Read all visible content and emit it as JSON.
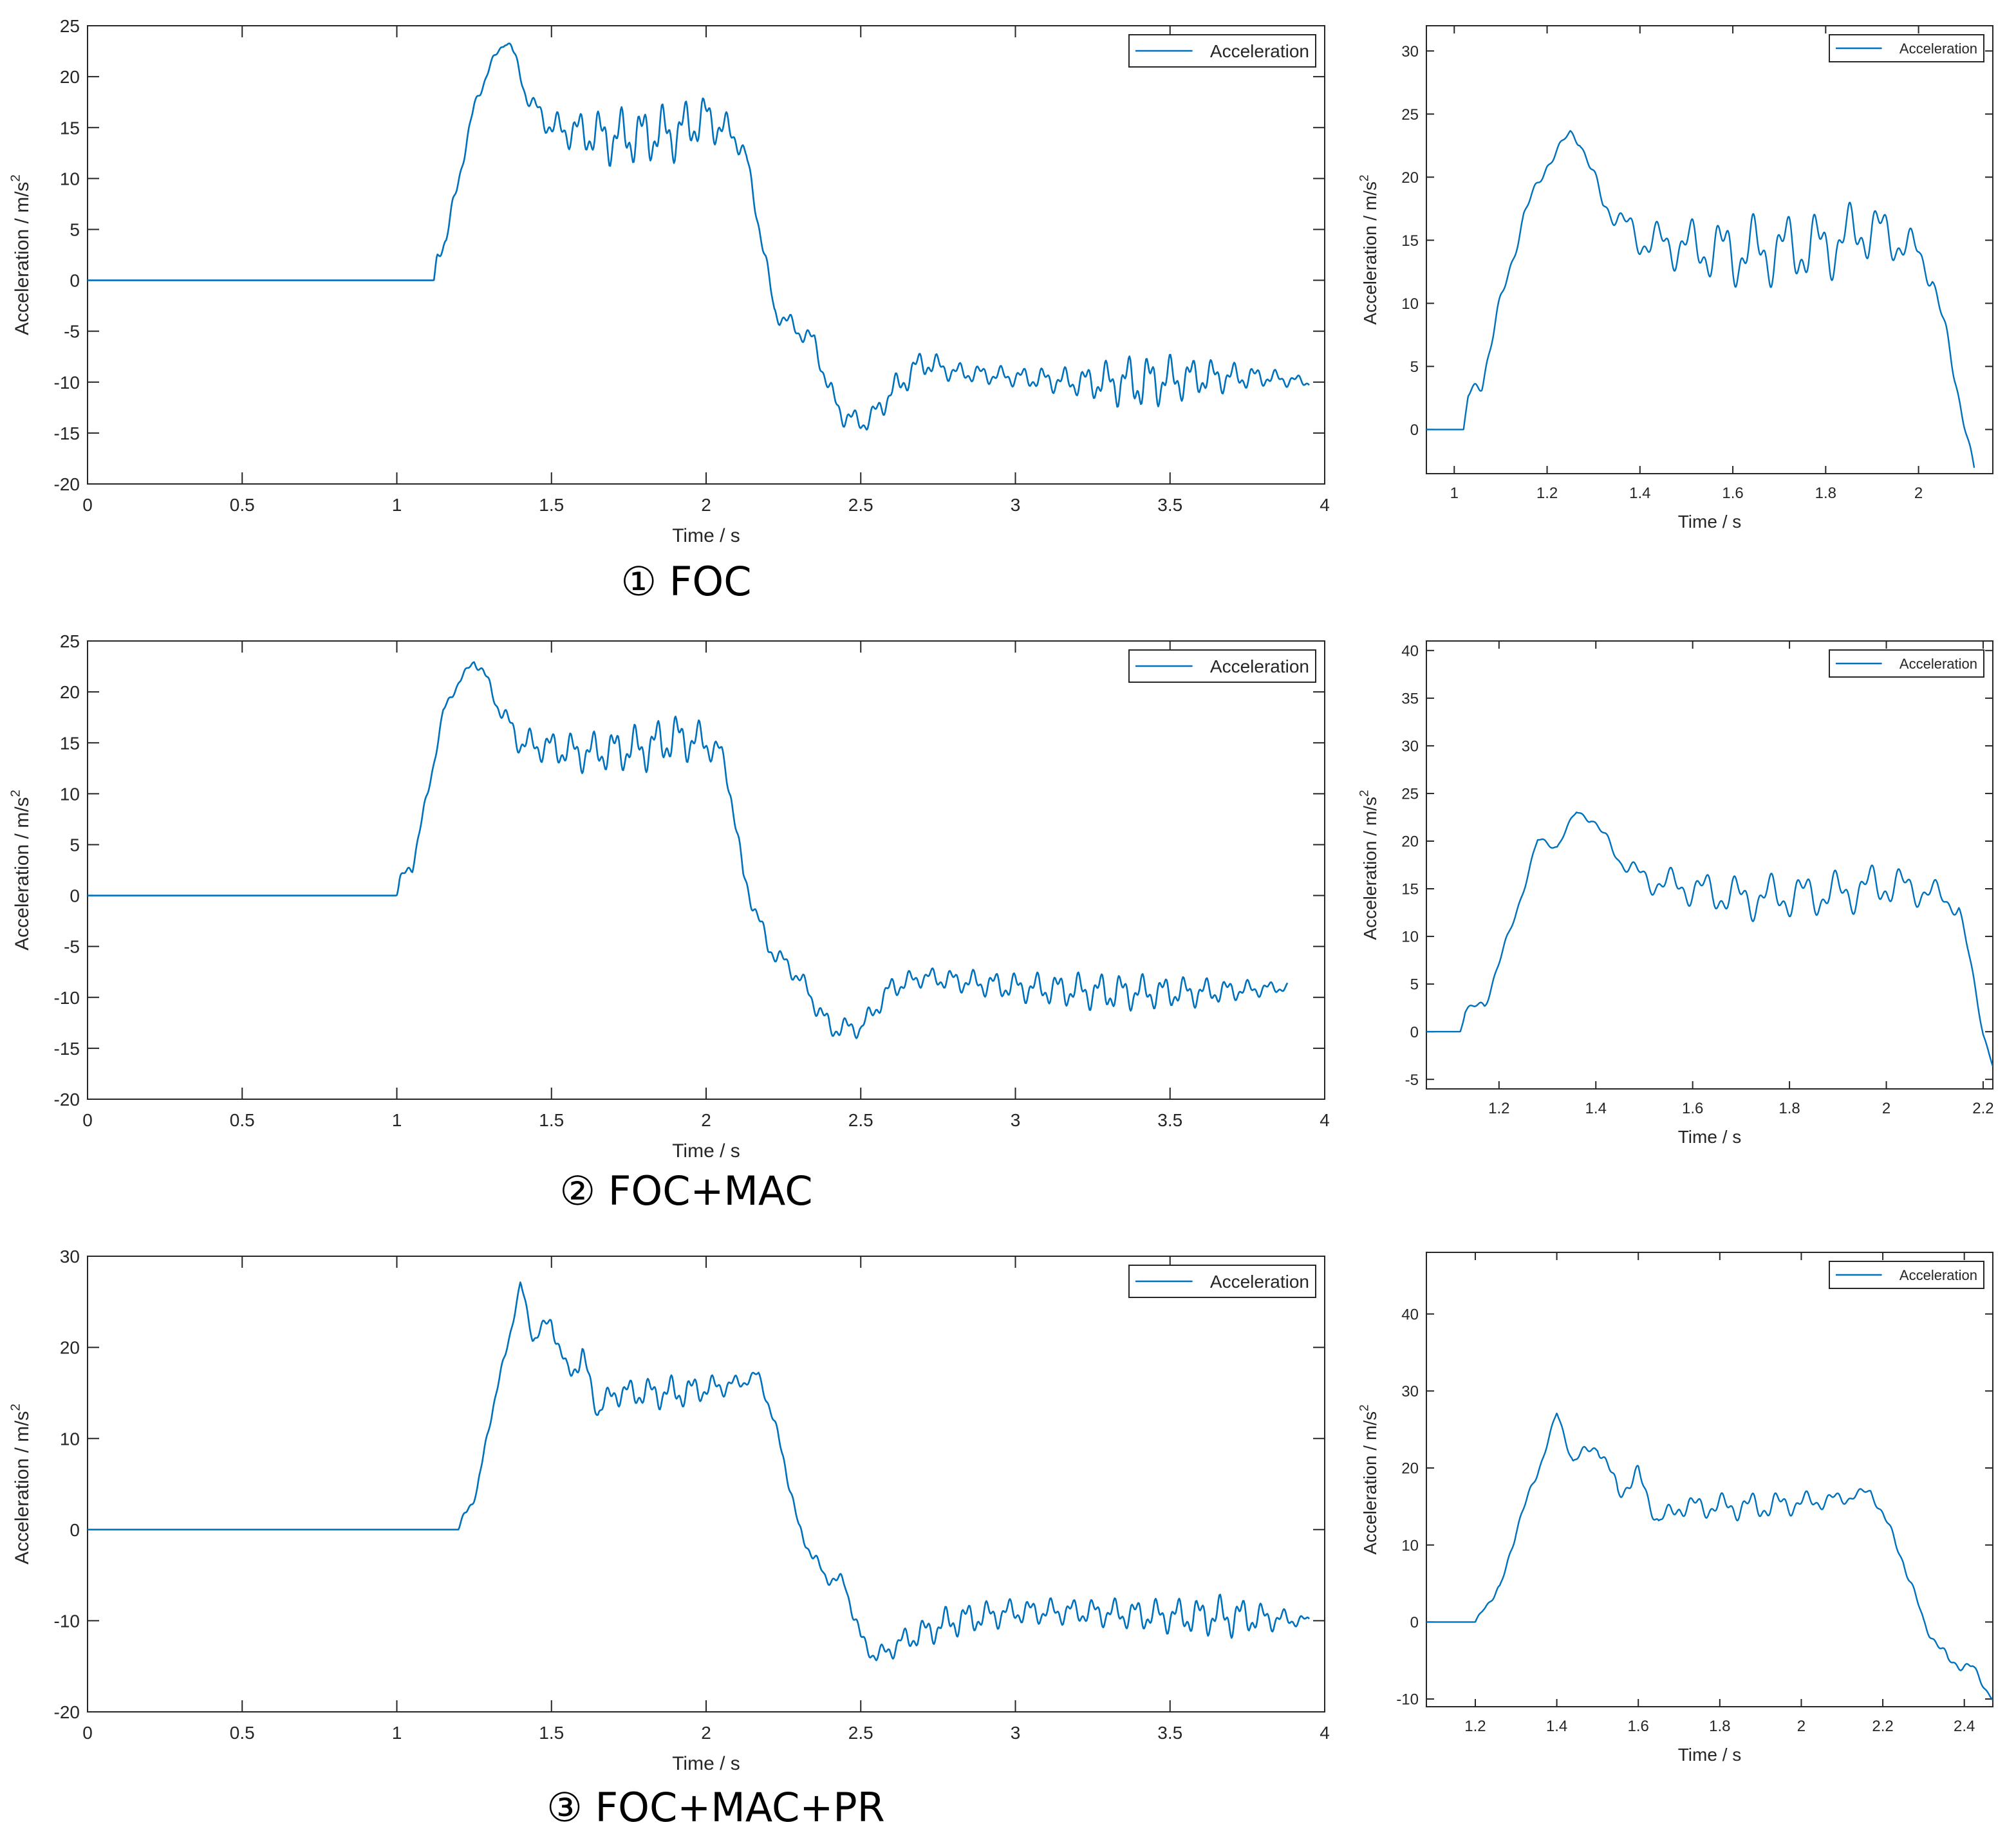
{
  "colors": {
    "line": "#0072BD",
    "axis": "#262626",
    "background": "#ffffff"
  },
  "captions": [
    "① FOC",
    "② FOC+MAC",
    "③ FOC+MAC+PR"
  ],
  "chart_data": [
    {
      "id": "foc-main",
      "type": "line",
      "title": "",
      "xlabel": "Time / s",
      "ylabel": "Acceleration / m/s",
      "ylabel_sup": "2",
      "xlim": [
        0,
        4
      ],
      "ylim": [
        -20,
        25
      ],
      "xticks": [
        0,
        0.5,
        1,
        1.5,
        2,
        2.5,
        3,
        3.5,
        4
      ],
      "xtick_labels": [
        "0",
        "0.5",
        "1",
        "1.5",
        "2",
        "2.5",
        "3",
        "3.5",
        "4"
      ],
      "yticks": [
        -20,
        -15,
        -10,
        -5,
        0,
        5,
        10,
        15,
        20,
        25
      ],
      "ytick_labels": [
        "-20",
        "-15",
        "-10",
        "-5",
        "0",
        "5",
        "10",
        "15",
        "20",
        "25"
      ],
      "legend": "top-right",
      "series": [
        {
          "name": "Acceleration",
          "x": [
            0,
            1.12,
            1.13,
            1.16,
            1.2,
            1.25,
            1.3,
            1.35,
            1.37,
            1.42,
            1.5,
            1.7,
            1.9,
            2.0,
            2.05,
            2.1,
            2.13,
            2.18,
            2.22,
            2.3,
            2.35,
            2.4,
            2.45,
            2.52,
            2.6,
            2.7,
            2.8,
            3.0,
            3.2,
            3.4,
            3.6,
            3.8,
            3.95
          ],
          "y": [
            0,
            0,
            2.5,
            4,
            10,
            17,
            21,
            23.5,
            23,
            18,
            15,
            14,
            14.5,
            16,
            15,
            14,
            12,
            4,
            -3,
            -5,
            -6,
            -11,
            -13.5,
            -14,
            -11,
            -8,
            -9,
            -9.5,
            -10,
            -10,
            -9.5,
            -9.5,
            -10
          ],
          "amp": [
            0,
            0,
            0.5,
            1,
            0.8,
            0.6,
            0.5,
            0.4,
            0.6,
            0.8,
            1.5,
            3,
            3,
            2.5,
            2,
            1.5,
            1,
            1,
            1,
            1,
            1,
            1.2,
            1.2,
            1,
            1.5,
            1.5,
            1,
            1,
            1.5,
            3,
            2,
            1,
            0.5
          ]
        }
      ]
    },
    {
      "id": "foc-zoom",
      "type": "line",
      "title": "",
      "xlabel": "Time / s",
      "ylabel": "Acceleration / m/s",
      "ylabel_sup": "2",
      "xlim": [
        0.94,
        2.16
      ],
      "ylim": [
        -3.5,
        32
      ],
      "xticks": [
        1,
        1.2,
        1.4,
        1.6,
        1.8,
        2
      ],
      "xtick_labels": [
        "1",
        "1.2",
        "1.4",
        "1.6",
        "1.8",
        "2"
      ],
      "yticks": [
        0,
        5,
        10,
        15,
        20,
        25,
        30
      ],
      "ytick_labels": [
        "0",
        "5",
        "10",
        "15",
        "20",
        "25",
        "30"
      ],
      "legend": "top-right",
      "series": [
        {
          "name": "Acceleration",
          "x": [
            0.94,
            1.02,
            1.03,
            1.06,
            1.1,
            1.15,
            1.2,
            1.25,
            1.27,
            1.32,
            1.4,
            1.6,
            1.8,
            1.9,
            1.95,
            2.0,
            2.03,
            2.08,
            2.12
          ],
          "y": [
            0,
            0,
            2.5,
            4,
            10,
            17,
            21,
            23.5,
            23,
            18,
            15,
            14,
            14.5,
            16,
            15,
            14,
            12,
            4,
            -3.2
          ],
          "amp": [
            0,
            0,
            0.5,
            1,
            0.8,
            0.6,
            0.5,
            0.4,
            0.6,
            0.8,
            1.5,
            3,
            3,
            2.5,
            2,
            1.5,
            1,
            1,
            0.3
          ]
        }
      ]
    },
    {
      "id": "focmac-main",
      "type": "line",
      "title": "",
      "xlabel": "Time / s",
      "ylabel": "Acceleration / m/s",
      "ylabel_sup": "2",
      "xlim": [
        0,
        4
      ],
      "ylim": [
        -20,
        25
      ],
      "xticks": [
        0,
        0.5,
        1,
        1.5,
        2,
        2.5,
        3,
        3.5,
        4
      ],
      "xtick_labels": [
        "0",
        "0.5",
        "1",
        "1.5",
        "2",
        "2.5",
        "3",
        "3.5",
        "4"
      ],
      "yticks": [
        -20,
        -15,
        -10,
        -5,
        0,
        5,
        10,
        15,
        20,
        25
      ],
      "ytick_labels": [
        "-20",
        "-15",
        "-10",
        "-5",
        "0",
        "5",
        "10",
        "15",
        "20",
        "25"
      ],
      "legend": "top-right",
      "series": [
        {
          "name": "Acceleration",
          "x": [
            0,
            1.0,
            1.01,
            1.05,
            1.1,
            1.15,
            1.2,
            1.25,
            1.28,
            1.32,
            1.4,
            1.6,
            1.8,
            1.9,
            2.0,
            2.05,
            2.08,
            2.12,
            2.2,
            2.3,
            2.4,
            2.5,
            2.6,
            2.7,
            3.0,
            3.3,
            3.6,
            3.88
          ],
          "y": [
            0,
            0,
            1.5,
            3,
            10,
            18,
            21,
            23,
            22,
            19,
            15,
            14,
            14.5,
            15.5,
            15,
            14,
            10,
            2,
            -5,
            -8,
            -13,
            -13,
            -9,
            -8,
            -9,
            -9.5,
            -9.5,
            -9
          ],
          "amp": [
            0,
            0,
            0.5,
            0.8,
            0.6,
            0.5,
            0.4,
            0.4,
            0.6,
            0.8,
            1.5,
            2,
            2.5,
            2.5,
            2,
            1,
            1,
            1,
            1,
            1,
            1.2,
            1,
            1.2,
            1,
            1.5,
            2,
            1.5,
            0.5
          ]
        }
      ]
    },
    {
      "id": "focmac-zoom",
      "type": "line",
      "title": "",
      "xlabel": "Time / s",
      "ylabel": "Acceleration / m/s",
      "ylabel_sup": "2",
      "xlim": [
        1.05,
        2.22
      ],
      "ylim": [
        -6,
        41
      ],
      "xticks": [
        1.2,
        1.4,
        1.6,
        1.8,
        2,
        2.2
      ],
      "xtick_labels": [
        "1.2",
        "1.4",
        "1.6",
        "1.8",
        "2",
        "2.2"
      ],
      "yticks": [
        -5,
        0,
        5,
        10,
        15,
        20,
        25,
        30,
        35,
        40
      ],
      "ytick_labels": [
        "-5",
        "0",
        "5",
        "10",
        "15",
        "20",
        "25",
        "30",
        "35",
        "40"
      ],
      "legend": "top-right",
      "series": [
        {
          "name": "Acceleration",
          "x": [
            1.05,
            1.12,
            1.13,
            1.17,
            1.22,
            1.28,
            1.32,
            1.36,
            1.39,
            1.45,
            1.5,
            1.7,
            1.9,
            2.0,
            2.05,
            2.1,
            2.15,
            2.17,
            2.2,
            2.22
          ],
          "y": [
            0,
            0,
            2,
            3,
            10,
            20,
            19.5,
            23,
            22.5,
            18,
            16,
            14,
            14.5,
            15.5,
            15,
            14.5,
            13,
            8,
            0,
            -3.5
          ],
          "amp": [
            0,
            0,
            0.5,
            0.8,
            0.6,
            0.5,
            0.4,
            0.4,
            0.6,
            0.8,
            1.5,
            2.5,
            2.5,
            2.5,
            2,
            1.5,
            1,
            0.8,
            0.5,
            0.3
          ]
        }
      ]
    },
    {
      "id": "focmacpr-main",
      "type": "line",
      "title": "",
      "xlabel": "Time / s",
      "ylabel": "Acceleration / m/s",
      "ylabel_sup": "2",
      "xlim": [
        0,
        4
      ],
      "ylim": [
        -20,
        30
      ],
      "xticks": [
        0,
        0.5,
        1,
        1.5,
        2,
        2.5,
        3,
        3.5,
        4
      ],
      "xtick_labels": [
        "0",
        "0.5",
        "1",
        "1.5",
        "2",
        "2.5",
        "3",
        "3.5",
        "4"
      ],
      "yticks": [
        -20,
        -10,
        0,
        10,
        20,
        30
      ],
      "ytick_labels": [
        "-20",
        "-10",
        "0",
        "10",
        "20",
        "30"
      ],
      "legend": "top-right",
      "series": [
        {
          "name": "Acceleration",
          "x": [
            0,
            1.2,
            1.22,
            1.26,
            1.3,
            1.35,
            1.4,
            1.44,
            1.5,
            1.55,
            1.6,
            1.65,
            1.7,
            1.9,
            2.1,
            2.17,
            2.2,
            2.25,
            2.3,
            2.38,
            2.45,
            2.5,
            2.55,
            2.65,
            2.8,
            3.0,
            3.2,
            3.5,
            3.7,
            3.95
          ],
          "y": [
            0,
            0,
            2,
            4,
            12,
            19,
            27,
            21,
            23,
            17,
            19,
            13,
            15,
            15,
            16,
            17,
            14,
            8,
            0,
            -5,
            -6,
            -12,
            -14,
            -12,
            -10,
            -9,
            -9,
            -9.5,
            -9.5,
            -10
          ],
          "amp": [
            0,
            0,
            0.5,
            0.8,
            0.8,
            0.6,
            0.5,
            0.8,
            1,
            1.5,
            1.5,
            1.2,
            1.5,
            2,
            1,
            0.5,
            0.8,
            0.8,
            0.8,
            0.8,
            1,
            1,
            1,
            1.5,
            2,
            1.5,
            1.5,
            2,
            2.5,
            0.5
          ]
        }
      ]
    },
    {
      "id": "focmacpr-zoom",
      "type": "line",
      "title": "",
      "xlabel": "Time / s",
      "ylabel": "Acceleration / m/s",
      "ylabel_sup": "2",
      "xlim": [
        1.08,
        2.47
      ],
      "ylim": [
        -11,
        48
      ],
      "xticks": [
        1.2,
        1.4,
        1.6,
        1.8,
        2,
        2.2,
        2.4
      ],
      "xtick_labels": [
        "1.2",
        "1.4",
        "1.6",
        "1.8",
        "2",
        "2.2",
        "2.4"
      ],
      "yticks": [
        -10,
        0,
        10,
        20,
        30,
        40
      ],
      "ytick_labels": [
        "-10",
        "0",
        "10",
        "20",
        "30",
        "40"
      ],
      "legend": "top-right",
      "series": [
        {
          "name": "Acceleration",
          "x": [
            1.08,
            1.2,
            1.22,
            1.26,
            1.3,
            1.35,
            1.4,
            1.44,
            1.5,
            1.55,
            1.6,
            1.65,
            1.7,
            1.9,
            2.1,
            2.17,
            2.2,
            2.25,
            2.3,
            2.36,
            2.42,
            2.47
          ],
          "y": [
            0,
            0,
            2,
            4,
            12,
            19,
            27,
            21,
            23,
            17,
            19,
            13,
            15,
            15,
            16,
            17,
            14,
            8,
            0,
            -5,
            -6,
            -10
          ],
          "amp": [
            0,
            0,
            0.5,
            0.8,
            0.8,
            0.6,
            0.5,
            0.8,
            1,
            1.5,
            1.5,
            1.2,
            1.5,
            2,
            1,
            0.5,
            0.8,
            0.8,
            0.8,
            0.8,
            0.8,
            0.3
          ]
        }
      ]
    }
  ]
}
